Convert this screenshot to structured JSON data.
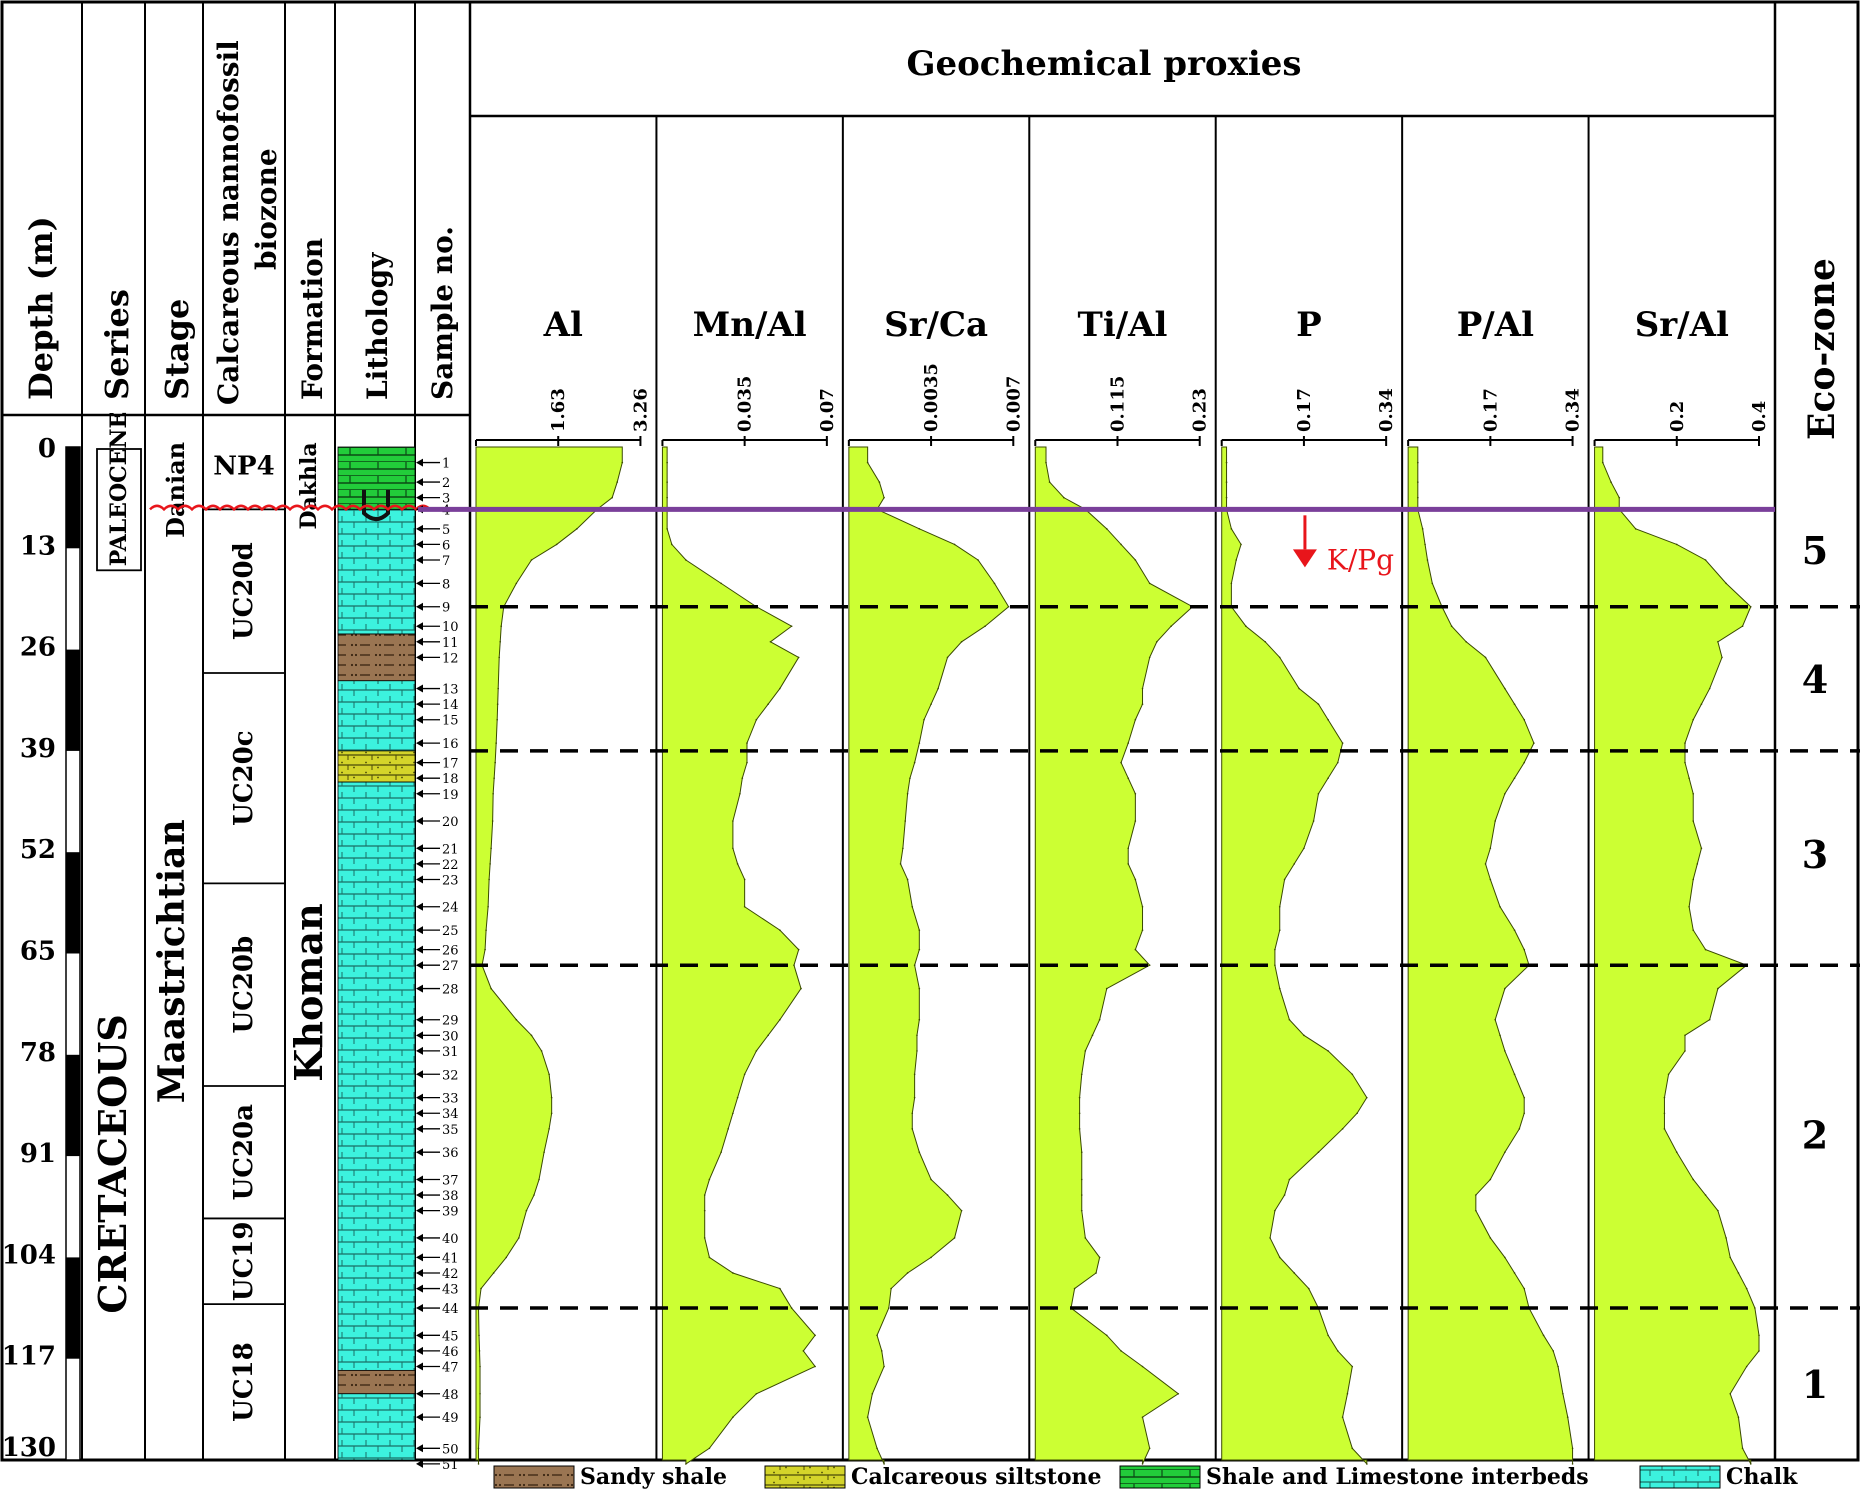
{
  "chart_data": {
    "type": "area",
    "title": "Geochemical proxies",
    "column_headers": {
      "depth": "Depth (m)",
      "series": "Series",
      "stage": "Stage",
      "biozone_line1": "Calcareous nannofossil",
      "biozone_line2": "biozone",
      "formation": "Formation",
      "lithology": "Lithology",
      "sample": "Sample no.",
      "ecozone": "Eco-zone"
    },
    "depth_ticks": [
      "0",
      "13",
      "26",
      "39",
      "52",
      "65",
      "78",
      "91",
      "104",
      "117",
      "130"
    ],
    "depth_range": [
      0,
      130
    ],
    "samples": [
      "1",
      "2",
      "3",
      "4",
      "5",
      "6",
      "7",
      "8",
      "9",
      "10",
      "11",
      "12",
      "13",
      "14",
      "15",
      "16",
      "17",
      "18",
      "19",
      "20",
      "21",
      "22",
      "23",
      "24",
      "25",
      "26",
      "27",
      "28",
      "29",
      "30",
      "31",
      "32",
      "33",
      "34",
      "35",
      "36",
      "37",
      "38",
      "39",
      "40",
      "41",
      "42",
      "43",
      "44",
      "45",
      "46",
      "47",
      "48",
      "49",
      "50",
      "51"
    ],
    "sample_depths": [
      2,
      4.5,
      6.5,
      8,
      10.5,
      12.5,
      14.5,
      17.5,
      20.5,
      23,
      25,
      27,
      31,
      33,
      35,
      38,
      40.5,
      42.5,
      44.5,
      48,
      51.5,
      53.5,
      55.5,
      59,
      62,
      64.5,
      66.5,
      69.5,
      73.5,
      75.5,
      77.5,
      80.5,
      83.5,
      85.5,
      87.5,
      90.5,
      94,
      96,
      98,
      101.5,
      104,
      106,
      108,
      110.5,
      114,
      116,
      118,
      121.5,
      124.5,
      128.5,
      130.5
    ],
    "series_units": [
      {
        "name": "PALEOCENE",
        "top": 0,
        "base": 13
      },
      {
        "name": "CRETACEOUS",
        "top": 13,
        "base": 130
      }
    ],
    "stages": [
      {
        "name": "Danian",
        "top": 0,
        "base": 8
      },
      {
        "name": "Maastrichtian",
        "top": 8,
        "base": 130
      }
    ],
    "biozones": [
      {
        "name": "NP4",
        "top": 0,
        "base": 8
      },
      {
        "name": "UC20d",
        "top": 8,
        "base": 29
      },
      {
        "name": "UC20c",
        "top": 29,
        "base": 56
      },
      {
        "name": "UC20b",
        "top": 56,
        "base": 82
      },
      {
        "name": "UC20a",
        "top": 82,
        "base": 99
      },
      {
        "name": "UC19",
        "top": 99,
        "base": 110
      },
      {
        "name": "UC18",
        "top": 110,
        "base": 130
      }
    ],
    "formations": [
      {
        "name": "Dakhla",
        "top": 0,
        "base": 8
      },
      {
        "name": "Khoman",
        "top": 8,
        "base": 130
      }
    ],
    "lithology": [
      {
        "type": "shale-limestone",
        "top": 0,
        "base": 8
      },
      {
        "type": "chalk",
        "top": 8,
        "base": 24
      },
      {
        "type": "sandy-shale",
        "top": 24,
        "base": 30
      },
      {
        "type": "chalk",
        "top": 30,
        "base": 39
      },
      {
        "type": "calcareous-siltstone",
        "top": 39,
        "base": 43
      },
      {
        "type": "chalk",
        "top": 43,
        "base": 118.5
      },
      {
        "type": "sandy-shale",
        "top": 118.5,
        "base": 121.5
      },
      {
        "type": "chalk",
        "top": 121.5,
        "base": 130
      }
    ],
    "tracks": [
      {
        "name": "Al",
        "max": 3.26,
        "ticks": [
          "1.63",
          "3.26"
        ],
        "values": [
          2.9,
          2.8,
          2.7,
          2.4,
          2.0,
          1.6,
          1.1,
          0.8,
          0.55,
          0.5,
          0.48,
          0.46,
          0.44,
          0.43,
          0.42,
          0.4,
          0.38,
          0.36,
          0.34,
          0.33,
          0.3,
          0.28,
          0.26,
          0.24,
          0.2,
          0.18,
          0.12,
          0.3,
          0.8,
          1.1,
          1.3,
          1.45,
          1.5,
          1.5,
          1.45,
          1.35,
          1.25,
          1.15,
          1.0,
          0.85,
          0.6,
          0.35,
          0.1,
          0.05,
          0.06,
          0.07,
          0.08,
          0.08,
          0.08,
          0.05,
          0.05
        ]
      },
      {
        "name": "Mn/Al",
        "max": 0.07,
        "ticks": [
          "0.035",
          "0.07"
        ],
        "values": [
          0.002,
          0.002,
          0.002,
          0.002,
          0.002,
          0.004,
          0.01,
          0.025,
          0.04,
          0.055,
          0.046,
          0.058,
          0.05,
          0.045,
          0.04,
          0.036,
          0.036,
          0.034,
          0.033,
          0.03,
          0.03,
          0.032,
          0.035,
          0.035,
          0.05,
          0.058,
          0.056,
          0.059,
          0.05,
          0.045,
          0.04,
          0.035,
          0.032,
          0.03,
          0.028,
          0.025,
          0.02,
          0.018,
          0.018,
          0.018,
          0.02,
          0.03,
          0.05,
          0.055,
          0.065,
          0.06,
          0.065,
          0.04,
          0.03,
          0.02,
          0.01
        ]
      },
      {
        "name": "Sr/Ca",
        "max": 0.007,
        "ticks": [
          "0.0035",
          "0.007"
        ],
        "values": [
          0.0008,
          0.0013,
          0.0015,
          0.0012,
          0.003,
          0.0045,
          0.0055,
          0.0062,
          0.0068,
          0.0058,
          0.0048,
          0.0042,
          0.0038,
          0.0035,
          0.0032,
          0.003,
          0.0028,
          0.0026,
          0.0025,
          0.0024,
          0.0023,
          0.0022,
          0.0025,
          0.0027,
          0.003,
          0.003,
          0.0028,
          0.003,
          0.003,
          0.0029,
          0.0029,
          0.0028,
          0.0028,
          0.0027,
          0.0027,
          0.003,
          0.0035,
          0.0042,
          0.0048,
          0.0045,
          0.0035,
          0.0025,
          0.0018,
          0.0017,
          0.0012,
          0.0014,
          0.0015,
          0.001,
          0.0008,
          0.0012,
          0.0015
        ]
      },
      {
        "name": "Ti/Al",
        "max": 0.23,
        "ticks": [
          "0.115",
          "0.23"
        ],
        "values": [
          0.015,
          0.02,
          0.04,
          0.07,
          0.1,
          0.12,
          0.14,
          0.16,
          0.22,
          0.19,
          0.17,
          0.16,
          0.15,
          0.15,
          0.14,
          0.13,
          0.12,
          0.13,
          0.14,
          0.14,
          0.13,
          0.13,
          0.14,
          0.15,
          0.15,
          0.14,
          0.16,
          0.1,
          0.09,
          0.08,
          0.07,
          0.065,
          0.062,
          0.062,
          0.062,
          0.065,
          0.065,
          0.065,
          0.065,
          0.07,
          0.09,
          0.085,
          0.055,
          0.05,
          0.1,
          0.12,
          0.15,
          0.2,
          0.15,
          0.16,
          0.15
        ]
      },
      {
        "name": "P",
        "max": 0.34,
        "ticks": [
          "0.17",
          "0.34"
        ],
        "values": [
          0.01,
          0.01,
          0.01,
          0.01,
          0.02,
          0.04,
          0.03,
          0.02,
          0.02,
          0.05,
          0.09,
          0.12,
          0.16,
          0.2,
          0.22,
          0.25,
          0.24,
          0.22,
          0.2,
          0.19,
          0.17,
          0.15,
          0.13,
          0.12,
          0.12,
          0.11,
          0.11,
          0.12,
          0.14,
          0.17,
          0.22,
          0.27,
          0.3,
          0.28,
          0.25,
          0.2,
          0.14,
          0.13,
          0.11,
          0.1,
          0.12,
          0.15,
          0.18,
          0.2,
          0.22,
          0.24,
          0.27,
          0.26,
          0.25,
          0.27,
          0.3
        ]
      },
      {
        "name": "P/Al",
        "max": 0.34,
        "ticks": [
          "0.17",
          "0.34"
        ],
        "values": [
          0.02,
          0.02,
          0.02,
          0.02,
          0.03,
          0.035,
          0.04,
          0.05,
          0.07,
          0.09,
          0.12,
          0.16,
          0.2,
          0.22,
          0.24,
          0.26,
          0.24,
          0.22,
          0.2,
          0.18,
          0.17,
          0.16,
          0.17,
          0.19,
          0.22,
          0.24,
          0.25,
          0.2,
          0.18,
          0.19,
          0.2,
          0.22,
          0.24,
          0.24,
          0.23,
          0.2,
          0.17,
          0.14,
          0.14,
          0.17,
          0.2,
          0.22,
          0.24,
          0.25,
          0.28,
          0.3,
          0.31,
          0.32,
          0.33,
          0.34,
          0.34
        ]
      },
      {
        "name": "Sr/Al",
        "max": 0.4,
        "ticks": [
          "0.2",
          "0.4"
        ],
        "values": [
          0.02,
          0.04,
          0.06,
          0.06,
          0.1,
          0.2,
          0.27,
          0.32,
          0.38,
          0.36,
          0.3,
          0.31,
          0.28,
          0.26,
          0.24,
          0.22,
          0.22,
          0.23,
          0.24,
          0.24,
          0.26,
          0.25,
          0.24,
          0.23,
          0.24,
          0.27,
          0.37,
          0.3,
          0.28,
          0.22,
          0.22,
          0.18,
          0.17,
          0.17,
          0.17,
          0.2,
          0.24,
          0.27,
          0.3,
          0.32,
          0.33,
          0.35,
          0.37,
          0.39,
          0.4,
          0.4,
          0.37,
          0.33,
          0.35,
          0.36,
          0.38
        ]
      }
    ],
    "boundary_kpg": {
      "depth": 8,
      "label": "K/Pg",
      "color": "#7a3f9a",
      "arrow_color": "#e8151b"
    },
    "eco_boundaries": [
      20.5,
      39,
      66.5,
      110.5
    ],
    "ecozones": [
      {
        "label": "5",
        "depth": 13.5
      },
      {
        "label": "4",
        "depth": 30
      },
      {
        "label": "3",
        "depth": 52.5
      },
      {
        "label": "2",
        "depth": 88.5
      },
      {
        "label": "1",
        "depth": 120.5
      }
    ],
    "legend": [
      {
        "type": "sandy-shale",
        "label": "Sandy shale"
      },
      {
        "type": "calcareous-siltstone",
        "label": "Calcareous siltstone"
      },
      {
        "type": "shale-limestone",
        "label": "Shale and Limestone interbeds"
      },
      {
        "type": "chalk",
        "label": "Chalk"
      }
    ],
    "colors": {
      "fill": "#ccff33",
      "chalk": "#3cf2de",
      "shale_limestone": "#22cc3a",
      "sandy_shale": "#9a7552",
      "calcareous_siltstone": "#d4d42a",
      "kpg_line": "#7a3f9a",
      "unconformity": "#e8151b"
    }
  }
}
